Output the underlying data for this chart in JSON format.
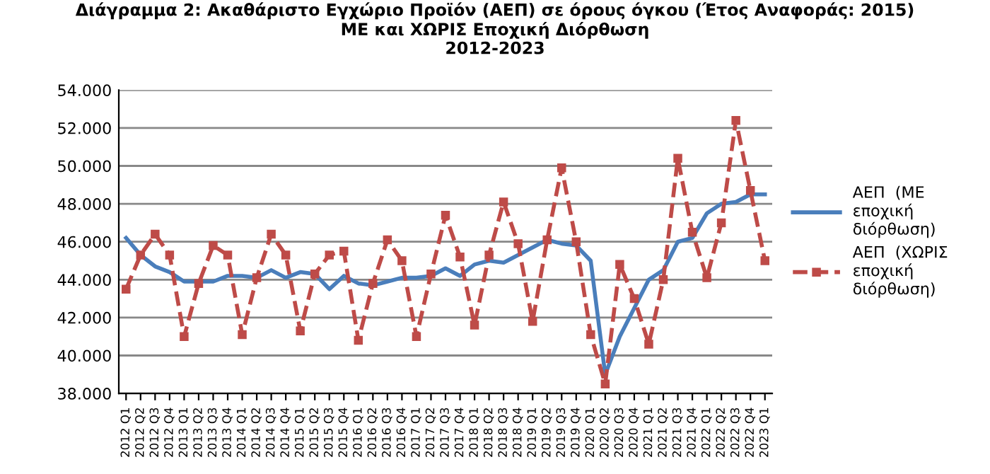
{
  "chart_data": {
    "type": "line",
    "title": "Διάγραμμα 2: Ακαθάριστο Εγχώριο Προϊόν (ΑΕΠ) σε όρους όγκου (Έτος Αναφοράς: 2015)\nΜΕ και ΧΩΡΙΣ Εποχική Διόρθωση\n2012-2023",
    "categories": [
      "2012 Q1",
      "2012 Q2",
      "2012 Q3",
      "2012 Q4",
      "2013 Q1",
      "2013 Q2",
      "2013 Q3",
      "2013 Q4",
      "2014 Q1",
      "2014 Q2",
      "2014 Q3",
      "2014 Q4",
      "2015 Q1",
      "2015 Q2",
      "2015 Q3",
      "2015 Q4",
      "2016 Q1",
      "2016 Q2",
      "2016 Q3",
      "2016 Q4",
      "2017 Q1",
      "2017 Q2",
      "2017 Q3",
      "2017 Q4",
      "2018 Q1",
      "2018 Q2",
      "2018 Q3",
      "2018 Q4",
      "2019 Q1",
      "2019 Q2",
      "2019 Q3",
      "2019 Q4",
      "2020 Q1",
      "2020 Q2",
      "2020 Q3",
      "2020 Q4",
      "2021 Q1",
      "2021 Q2",
      "2021 Q3",
      "2021 Q4",
      "2022 Q1",
      "2022 Q2",
      "2022 Q3",
      "2022 Q4",
      "2023 Q1"
    ],
    "series": [
      {
        "name": "ΑΕΠ (ΜΕ εποχική διόρθωση)",
        "color": "#4a7ebb",
        "marker": "none",
        "line_style": "solid",
        "values": [
          46200,
          45300,
          44700,
          44400,
          43900,
          43900,
          43900,
          44200,
          44200,
          44100,
          44500,
          44100,
          44400,
          44300,
          43500,
          44200,
          43800,
          43700,
          43900,
          44100,
          44100,
          44200,
          44600,
          44200,
          44800,
          45000,
          44900,
          45300,
          45700,
          46100,
          45900,
          45800,
          45000,
          39000,
          41000,
          42500,
          44000,
          44500,
          46000,
          46200,
          47500,
          48000,
          48100,
          48500,
          48500
        ]
      },
      {
        "name": "ΑΕΠ (ΧΩΡΙΣ εποχική διόρθωση)",
        "color": "#be4b48",
        "marker": "square",
        "line_style": "dashed",
        "values": [
          43500,
          45300,
          46400,
          45300,
          41000,
          43800,
          45800,
          45300,
          41100,
          44100,
          46400,
          45300,
          41300,
          44300,
          45300,
          45500,
          40800,
          43800,
          46100,
          45000,
          41000,
          44300,
          47400,
          45200,
          41600,
          45300,
          48100,
          45900,
          41800,
          46100,
          49900,
          46000,
          41100,
          38500,
          44800,
          43000,
          40600,
          44000,
          50400,
          46500,
          44100,
          47000,
          52400,
          48700,
          45000
        ]
      }
    ],
    "ylim": [
      38000,
      54000
    ],
    "yticks": [
      {
        "value": 38000,
        "label": "38.000"
      },
      {
        "value": 40000,
        "label": "40.000"
      },
      {
        "value": 42000,
        "label": "42.000"
      },
      {
        "value": 44000,
        "label": "44.000"
      },
      {
        "value": 46000,
        "label": "46.000"
      },
      {
        "value": 48000,
        "label": "48.000"
      },
      {
        "value": 50000,
        "label": "50.000"
      },
      {
        "value": 52000,
        "label": "52.000"
      },
      {
        "value": 54000,
        "label": "54.000"
      }
    ],
    "grid": "y",
    "legend": "right"
  }
}
